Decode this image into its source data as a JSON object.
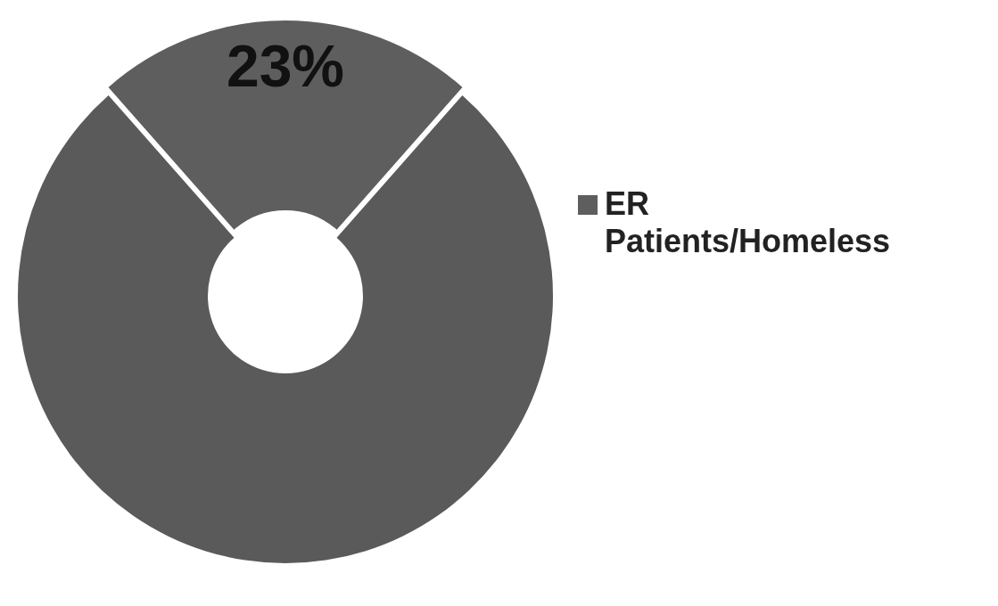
{
  "chart_data": {
    "type": "donut",
    "categories": [
      "ER Patients/Homeless",
      null
    ],
    "values": [
      23,
      77
    ],
    "colors": [
      "#5e5e5e",
      "#5a5a5a"
    ],
    "value_labels": [
      "23%",
      null
    ],
    "legend": "right"
  }
}
